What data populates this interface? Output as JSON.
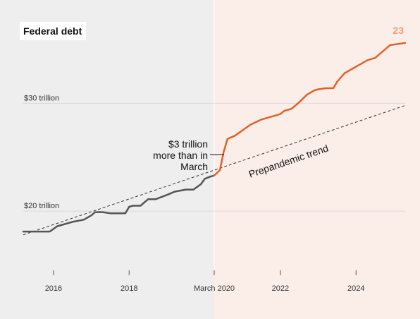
{
  "chart_data": {
    "type": "line",
    "title": "Federal debt",
    "corner_label": "23",
    "xlabel": "",
    "ylabel": "",
    "xlim": [
      2015.2,
      2025.3
    ],
    "ylim": [
      16.8,
      35
    ],
    "x_ticks": [
      {
        "value": 2016,
        "label": "2016"
      },
      {
        "value": 2018,
        "label": "2018"
      },
      {
        "value": 2020.25,
        "label": "March 2020"
      },
      {
        "value": 2022,
        "label": "2022"
      },
      {
        "value": 2024,
        "label": "2024"
      }
    ],
    "y_ticks": [
      {
        "value": 30,
        "label": "$30 trillion"
      },
      {
        "value": 20,
        "label": "$20 trillion"
      }
    ],
    "grid": true,
    "shaded_regions": [
      {
        "from": 2015.2,
        "to": 2020.25,
        "color": "#eeeeee"
      },
      {
        "from": 2020.25,
        "to": 2025.3,
        "color": "#fbeee8"
      }
    ],
    "colors": {
      "pre": "#555555",
      "post": "#e0622a",
      "trend": "#333333",
      "corner": "#f0a07a"
    },
    "series": [
      {
        "color": "#555555",
        "points": [
          [
            2015.2,
            18.1
          ],
          [
            2015.6,
            18.1
          ],
          [
            2015.9,
            18.1
          ],
          [
            2016.1,
            18.6
          ],
          [
            2016.3,
            18.8
          ],
          [
            2016.5,
            19.0
          ],
          [
            2016.8,
            19.2
          ],
          [
            2017.0,
            19.6
          ],
          [
            2017.1,
            19.9
          ],
          [
            2017.3,
            19.9
          ],
          [
            2017.5,
            19.8
          ],
          [
            2017.9,
            19.8
          ],
          [
            2018.0,
            20.4
          ],
          [
            2018.1,
            20.5
          ],
          [
            2018.3,
            20.5
          ],
          [
            2018.5,
            21.1
          ],
          [
            2018.7,
            21.1
          ],
          [
            2019.0,
            21.5
          ],
          [
            2019.2,
            21.8
          ],
          [
            2019.5,
            22.0
          ],
          [
            2019.7,
            22.0
          ],
          [
            2019.9,
            22.5
          ],
          [
            2020.0,
            23.0
          ],
          [
            2020.15,
            23.2
          ],
          [
            2020.25,
            23.3
          ]
        ]
      },
      {
        "color": "#e0622a",
        "points": [
          [
            2020.25,
            23.3
          ],
          [
            2020.4,
            23.8
          ],
          [
            2020.5,
            25.5
          ],
          [
            2020.6,
            26.7
          ],
          [
            2020.8,
            27.0
          ],
          [
            2021.0,
            27.5
          ],
          [
            2021.2,
            28.0
          ],
          [
            2021.5,
            28.5
          ],
          [
            2021.7,
            28.7
          ],
          [
            2021.9,
            28.9
          ],
          [
            2022.0,
            29.0
          ],
          [
            2022.1,
            29.3
          ],
          [
            2022.3,
            29.5
          ],
          [
            2022.5,
            30.1
          ],
          [
            2022.7,
            30.8
          ],
          [
            2022.9,
            31.2
          ],
          [
            2023.0,
            31.3
          ],
          [
            2023.2,
            31.4
          ],
          [
            2023.4,
            31.4
          ],
          [
            2023.5,
            32.0
          ],
          [
            2023.7,
            32.8
          ],
          [
            2023.9,
            33.2
          ],
          [
            2024.1,
            33.6
          ],
          [
            2024.3,
            34.0
          ],
          [
            2024.5,
            34.2
          ],
          [
            2024.7,
            34.8
          ],
          [
            2024.9,
            35.4
          ],
          [
            2025.1,
            35.5
          ],
          [
            2025.3,
            35.6
          ]
        ]
      }
    ],
    "trend": {
      "label": "Prepandemic trend",
      "points": [
        [
          2015.2,
          17.8
        ],
        [
          2025.3,
          29.8
        ]
      ]
    },
    "annotations": [
      {
        "lines": [
          "$3 trillion",
          "more than in",
          "March"
        ]
      }
    ]
  }
}
